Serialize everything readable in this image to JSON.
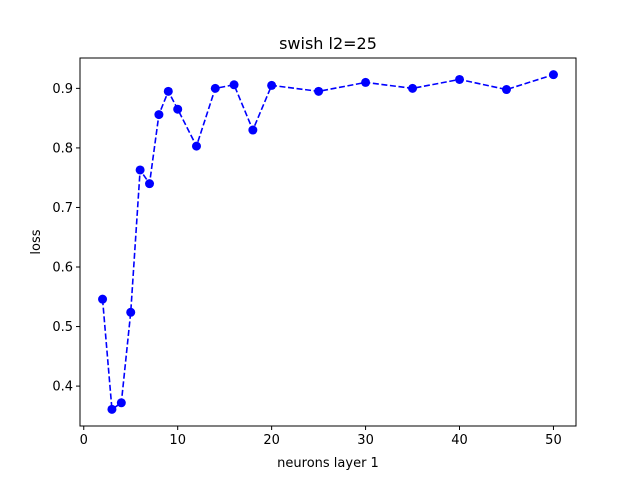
{
  "chart_data": {
    "type": "line",
    "title": "swish l2=25",
    "xlabel": "neurons layer 1",
    "ylabel": "loss",
    "xlim": [
      -0.4,
      52.4
    ],
    "ylim": [
      0.333,
      0.951
    ],
    "xticks": [
      0,
      10,
      20,
      30,
      40,
      50
    ],
    "yticks": [
      0.4,
      0.5,
      0.6,
      0.7,
      0.8,
      0.9
    ],
    "xtick_labels": [
      "0",
      "10",
      "20",
      "30",
      "40",
      "50"
    ],
    "ytick_labels": [
      "0.4",
      "0.5",
      "0.6",
      "0.7",
      "0.8",
      "0.9"
    ],
    "grid": false,
    "series": [
      {
        "color": "#0000ff",
        "line_style": "dashed",
        "marker": "circle",
        "x": [
          2,
          3,
          4,
          5,
          6,
          7,
          8,
          9,
          10,
          12,
          14,
          16,
          18,
          20,
          25,
          30,
          35,
          40,
          45,
          50
        ],
        "values": [
          0.546,
          0.361,
          0.372,
          0.524,
          0.763,
          0.74,
          0.856,
          0.895,
          0.865,
          0.803,
          0.9,
          0.906,
          0.83,
          0.905,
          0.895,
          0.91,
          0.9,
          0.915,
          0.898,
          0.923
        ]
      }
    ]
  }
}
